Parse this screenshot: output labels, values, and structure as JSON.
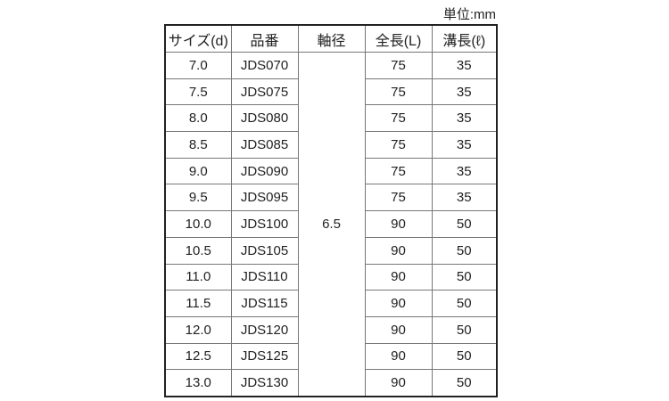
{
  "unit_label": "単位:mm",
  "headers": [
    "サイズ(d)",
    "品番",
    "軸径",
    "全長(L)",
    "溝長(ℓ)"
  ],
  "shaft_diameter": "6.5",
  "rows": [
    [
      "7.0",
      "JDS070",
      "75",
      "35"
    ],
    [
      "7.5",
      "JDS075",
      "75",
      "35"
    ],
    [
      "8.0",
      "JDS080",
      "75",
      "35"
    ],
    [
      "8.5",
      "JDS085",
      "75",
      "35"
    ],
    [
      "9.0",
      "JDS090",
      "75",
      "35"
    ],
    [
      "9.5",
      "JDS095",
      "75",
      "35"
    ],
    [
      "10.0",
      "JDS100",
      "90",
      "50"
    ],
    [
      "10.5",
      "JDS105",
      "90",
      "50"
    ],
    [
      "11.0",
      "JDS110",
      "90",
      "50"
    ],
    [
      "11.5",
      "JDS115",
      "90",
      "50"
    ],
    [
      "12.0",
      "JDS120",
      "90",
      "50"
    ],
    [
      "12.5",
      "JDS125",
      "90",
      "50"
    ],
    [
      "13.0",
      "JDS130",
      "90",
      "50"
    ]
  ]
}
